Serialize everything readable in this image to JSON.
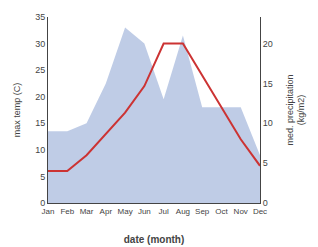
{
  "chart_data": {
    "type": "line",
    "categories": [
      "Jan",
      "Feb",
      "Mar",
      "Apr",
      "May",
      "Jun",
      "Jul",
      "Aug",
      "Sep",
      "Oct",
      "Nov",
      "Dec"
    ],
    "xlabel": "date (month)",
    "ylabel": "max temp (C)",
    "y2label": "med. precipitation\n(kg/m2)",
    "ylim": [
      0,
      35
    ],
    "yticks": [
      0,
      5,
      10,
      15,
      20,
      25,
      30,
      35
    ],
    "y2lim": [
      0,
      23.33
    ],
    "y2ticks": [
      0,
      5,
      10,
      15,
      20
    ],
    "grid": false,
    "series": [
      {
        "type": "area",
        "axis": "y2",
        "color": "#aabbdd",
        "values": [
          9,
          9,
          10,
          15,
          22,
          20,
          13,
          21,
          12,
          12,
          12,
          6
        ]
      },
      {
        "type": "line",
        "color": "#cc3333",
        "values": [
          6,
          6,
          9,
          13,
          17,
          22,
          30,
          30,
          24,
          18,
          12,
          7
        ]
      }
    ]
  }
}
